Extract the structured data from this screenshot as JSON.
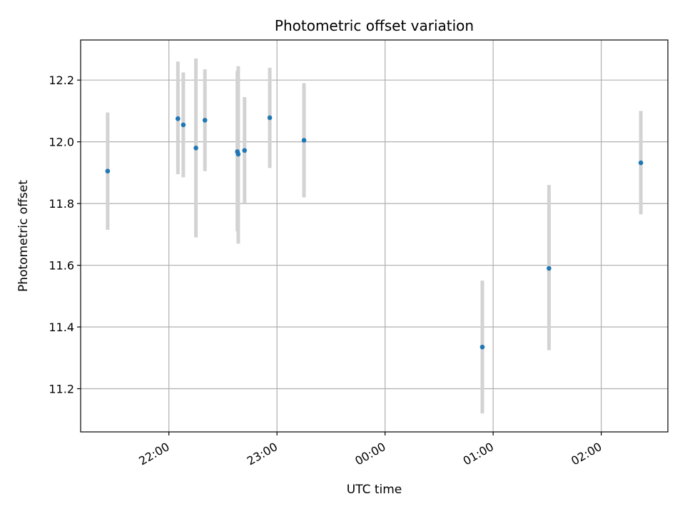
{
  "chart_data": {
    "type": "scatter",
    "title": "Photometric offset variation",
    "xlabel": "UTC time",
    "ylabel": "Photometric offset",
    "x_unit": "UTC date-time",
    "xlim": [
      "2023-01-01T21:11:00",
      "2023-01-02T02:37:00"
    ],
    "ylim": [
      11.06,
      12.33
    ],
    "x_ticks": [
      {
        "value": "2023-01-01T22:00:00",
        "label": "22:00"
      },
      {
        "value": "2023-01-01T23:00:00",
        "label": "23:00"
      },
      {
        "value": "2023-01-02T00:00:00",
        "label": "00:00"
      },
      {
        "value": "2023-01-02T01:00:00",
        "label": "01:00"
      },
      {
        "value": "2023-01-02T02:00:00",
        "label": "02:00"
      }
    ],
    "y_ticks": [
      11.2,
      11.4,
      11.6,
      11.8,
      12.0,
      12.2
    ],
    "grid": true,
    "marker_color": "#1f77b4",
    "errorbar_color": "#d3d3d3",
    "points": [
      {
        "x": "2023-01-01T21:26:00",
        "y": 11.905,
        "ylow": 11.715,
        "yhigh": 12.095
      },
      {
        "x": "2023-01-01T22:05:00",
        "y": 12.075,
        "ylow": 11.895,
        "yhigh": 12.26
      },
      {
        "x": "2023-01-01T22:08:00",
        "y": 12.055,
        "ylow": 11.885,
        "yhigh": 12.225
      },
      {
        "x": "2023-01-01T22:15:00",
        "y": 11.98,
        "ylow": 11.69,
        "yhigh": 12.27
      },
      {
        "x": "2023-01-01T22:20:00",
        "y": 12.07,
        "ylow": 11.905,
        "yhigh": 12.235
      },
      {
        "x": "2023-01-01T22:38:00",
        "y": 11.968,
        "ylow": 11.71,
        "yhigh": 12.23
      },
      {
        "x": "2023-01-01T22:38:30",
        "y": 11.96,
        "ylow": 11.67,
        "yhigh": 12.245
      },
      {
        "x": "2023-01-01T22:42:00",
        "y": 11.972,
        "ylow": 11.8,
        "yhigh": 12.145
      },
      {
        "x": "2023-01-01T22:56:00",
        "y": 12.078,
        "ylow": 11.915,
        "yhigh": 12.24
      },
      {
        "x": "2023-01-01T23:15:00",
        "y": 12.005,
        "ylow": 11.82,
        "yhigh": 12.19
      },
      {
        "x": "2023-01-02T00:54:00",
        "y": 11.335,
        "ylow": 11.12,
        "yhigh": 11.55
      },
      {
        "x": "2023-01-02T01:31:00",
        "y": 11.59,
        "ylow": 11.325,
        "yhigh": 11.86
      },
      {
        "x": "2023-01-02T02:22:00",
        "y": 11.932,
        "ylow": 11.765,
        "yhigh": 12.1
      }
    ]
  }
}
